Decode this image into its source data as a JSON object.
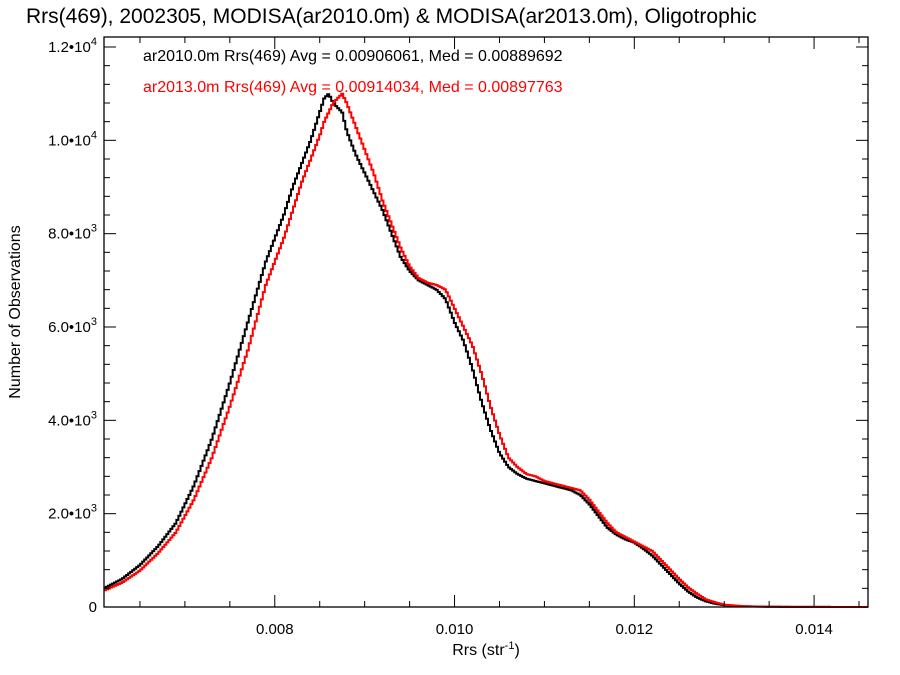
{
  "chart_data": {
    "type": "line",
    "title": "Rrs(469), 2002305, MODISA(ar2010.0m) & MODISA(ar2013.0m), Oligotrophic",
    "xlabel": "Rrs (str",
    "xlabel_sup": "-1",
    "xlabel_close": ")",
    "ylabel": "Number of Observations",
    "xlim": [
      0.0061,
      0.0146
    ],
    "ylim": [
      0,
      12000
    ],
    "grid": false,
    "x_ticks": [
      {
        "value": 0.008,
        "label": "0.008"
      },
      {
        "value": 0.01,
        "label": "0.010"
      },
      {
        "value": 0.012,
        "label": "0.012"
      },
      {
        "value": 0.014,
        "label": "0.014"
      }
    ],
    "y_ticks": [
      {
        "value": 0,
        "mant": "0",
        "exp": ""
      },
      {
        "value": 2000,
        "mant": "2.0•10",
        "exp": "3"
      },
      {
        "value": 4000,
        "mant": "4.0•10",
        "exp": "3"
      },
      {
        "value": 6000,
        "mant": "6.0•10",
        "exp": "3"
      },
      {
        "value": 8000,
        "mant": "8.0•10",
        "exp": "3"
      },
      {
        "value": 10000,
        "mant": "1.0•10",
        "exp": "4"
      },
      {
        "value": 12000,
        "mant": "1.2•10",
        "exp": "4"
      }
    ],
    "annotations": [
      {
        "text": "ar2010.0m Rrs(469) Avg = 0.00906061, Med = 0.00889692",
        "color": "#000000"
      },
      {
        "text": "ar2013.0m Rrs(469) Avg = 0.00914034, Med = 0.00897763",
        "color": "#ff0000"
      }
    ],
    "series": [
      {
        "color": "#000000",
        "x": [
          0.0061,
          0.0063,
          0.0065,
          0.0067,
          0.0069,
          0.0071,
          0.0073,
          0.0075,
          0.0077,
          0.0079,
          0.0081,
          0.0082,
          0.0083,
          0.0084,
          0.0085,
          0.00855,
          0.0086,
          0.00865,
          0.0087,
          0.00875,
          0.0088,
          0.0089,
          0.009,
          0.0091,
          0.0092,
          0.0093,
          0.0094,
          0.0095,
          0.0096,
          0.0097,
          0.0098,
          0.0099,
          0.01,
          0.0101,
          0.0102,
          0.0103,
          0.0104,
          0.0105,
          0.0106,
          0.0107,
          0.0108,
          0.0109,
          0.011,
          0.0111,
          0.0112,
          0.0113,
          0.0114,
          0.0115,
          0.0116,
          0.0117,
          0.0118,
          0.0119,
          0.012,
          0.0121,
          0.0122,
          0.0123,
          0.0124,
          0.0125,
          0.0126,
          0.0127,
          0.0128,
          0.0129,
          0.013,
          0.0132,
          0.0134,
          0.0136,
          0.014,
          0.0146
        ],
        "y": [
          400,
          600,
          900,
          1300,
          1800,
          2600,
          3600,
          4800,
          6100,
          7400,
          8400,
          9000,
          9500,
          10000,
          10600,
          10900,
          11000,
          10800,
          10700,
          10600,
          10200,
          9700,
          9300,
          8900,
          8500,
          8000,
          7500,
          7200,
          7000,
          6900,
          6800,
          6600,
          6100,
          5700,
          5100,
          4400,
          3800,
          3300,
          3000,
          2850,
          2750,
          2700,
          2650,
          2600,
          2550,
          2500,
          2400,
          2200,
          1950,
          1700,
          1550,
          1450,
          1380,
          1250,
          1100,
          900,
          700,
          500,
          330,
          200,
          120,
          70,
          40,
          15,
          8,
          4,
          2,
          0
        ]
      },
      {
        "color": "#ff0000",
        "x": [
          0.0061,
          0.0063,
          0.0065,
          0.0067,
          0.0069,
          0.0071,
          0.0073,
          0.0075,
          0.0077,
          0.0079,
          0.0081,
          0.0082,
          0.0083,
          0.0084,
          0.0085,
          0.00855,
          0.0086,
          0.00865,
          0.0087,
          0.00875,
          0.0088,
          0.0089,
          0.009,
          0.0091,
          0.0092,
          0.0093,
          0.0094,
          0.0095,
          0.0096,
          0.0097,
          0.0098,
          0.0099,
          0.01,
          0.0101,
          0.0102,
          0.0103,
          0.0104,
          0.0105,
          0.0106,
          0.0107,
          0.0108,
          0.0109,
          0.011,
          0.0111,
          0.0112,
          0.0113,
          0.0114,
          0.0115,
          0.0116,
          0.0117,
          0.0118,
          0.0119,
          0.012,
          0.0121,
          0.0122,
          0.0123,
          0.0124,
          0.0125,
          0.0126,
          0.0127,
          0.0128,
          0.0129,
          0.013,
          0.0132,
          0.0134,
          0.0136,
          0.014,
          0.0146
        ],
        "y": [
          350,
          520,
          780,
          1150,
          1600,
          2300,
          3200,
          4300,
          5500,
          6900,
          7900,
          8500,
          9100,
          9600,
          10100,
          10400,
          10600,
          10800,
          10900,
          11000,
          10800,
          10300,
          9800,
          9300,
          8700,
          8200,
          7700,
          7300,
          7050,
          6950,
          6900,
          6800,
          6400,
          6000,
          5600,
          5000,
          4300,
          3700,
          3200,
          3000,
          2850,
          2800,
          2700,
          2650,
          2600,
          2550,
          2500,
          2300,
          2050,
          1800,
          1600,
          1500,
          1400,
          1300,
          1200,
          1000,
          800,
          600,
          420,
          280,
          160,
          100,
          50,
          20,
          10,
          5,
          2,
          0
        ]
      }
    ]
  }
}
